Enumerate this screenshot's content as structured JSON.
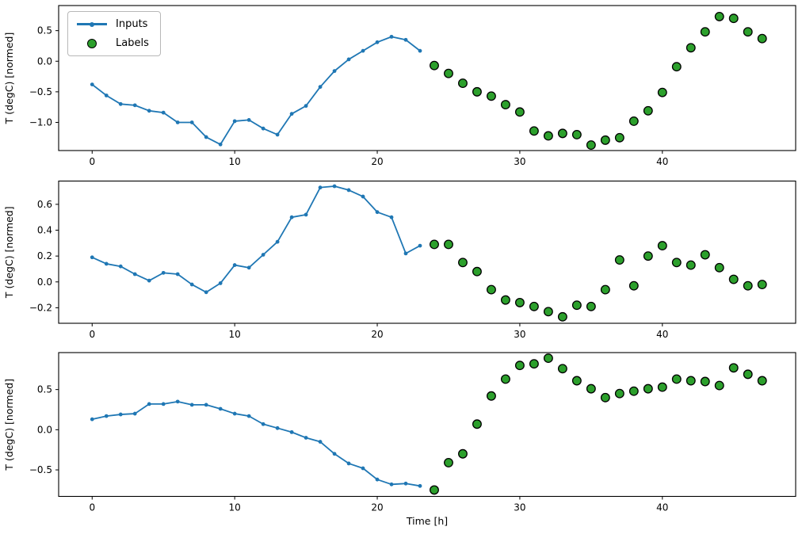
{
  "figure": {
    "background": "#ffffff",
    "xlabel": "Time [h]",
    "ylabel": "T (degC) [normed]",
    "colors": {
      "inputs_line": "#1f77b4",
      "labels_fill": "#2ca02c",
      "labels_edge": "#000000",
      "axis": "#000000",
      "tick_text": "#000000"
    },
    "legend": {
      "position": "upper-left-first-subplot",
      "items": [
        {
          "label": "Inputs",
          "marker": "blue-line-dot"
        },
        {
          "label": "Labels",
          "marker": "green-circle"
        }
      ]
    }
  },
  "chart_data": [
    {
      "type": "line+scatter",
      "subplot": 1,
      "title": "",
      "xlabel": "",
      "ylabel": "T (degC) [normed]",
      "grid": false,
      "xlim": [
        -2.35,
        49.35
      ],
      "ylim": [
        -1.46,
        0.91
      ],
      "xticks": {
        "values": [
          0,
          10,
          20,
          30,
          40
        ],
        "labels": [
          "0",
          "10",
          "20",
          "30",
          "40"
        ]
      },
      "yticks": {
        "values": [
          0.5,
          0.0,
          -0.5,
          -1.0
        ],
        "labels": [
          "0.5",
          "0.0",
          "−0.5",
          "−1.0"
        ]
      },
      "series": [
        {
          "name": "Inputs",
          "type": "line",
          "marker": "dot",
          "color": "#1f77b4",
          "x": [
            0,
            1,
            2,
            3,
            4,
            5,
            6,
            7,
            8,
            9,
            10,
            11,
            12,
            13,
            14,
            15,
            16,
            17,
            18,
            19,
            20,
            21,
            22,
            23
          ],
          "y": [
            -0.38,
            -0.56,
            -0.7,
            -0.72,
            -0.81,
            -0.84,
            -1.0,
            -1.0,
            -1.24,
            -1.36,
            -0.98,
            -0.96,
            -1.1,
            -1.2,
            -0.86,
            -0.73,
            -0.42,
            -0.16,
            0.03,
            0.17,
            0.31,
            0.4,
            0.35,
            0.17
          ]
        },
        {
          "name": "Labels",
          "type": "scatter",
          "marker": "circle",
          "color": "#2ca02c",
          "edge": "#000000",
          "x": [
            24,
            25,
            26,
            27,
            28,
            29,
            30,
            31,
            32,
            33,
            34,
            35,
            36,
            37,
            38,
            39,
            40,
            41,
            42,
            43,
            44,
            45,
            46,
            47
          ],
          "y": [
            -0.07,
            -0.2,
            -0.36,
            -0.5,
            -0.57,
            -0.71,
            -0.83,
            -1.14,
            -1.22,
            -1.18,
            -1.2,
            -1.37,
            -1.29,
            -1.25,
            -0.98,
            -0.81,
            -0.51,
            -0.09,
            0.22,
            0.48,
            0.73,
            0.7,
            0.48,
            0.37
          ]
        }
      ]
    },
    {
      "type": "line+scatter",
      "subplot": 2,
      "title": "",
      "xlabel": "",
      "ylabel": "T (degC) [normed]",
      "grid": false,
      "xlim": [
        -2.35,
        49.35
      ],
      "ylim": [
        -0.32,
        0.78
      ],
      "xticks": {
        "values": [
          0,
          10,
          20,
          30,
          40
        ],
        "labels": [
          "0",
          "10",
          "20",
          "30",
          "40"
        ]
      },
      "yticks": {
        "values": [
          0.6,
          0.4,
          0.2,
          0.0,
          -0.2
        ],
        "labels": [
          "0.6",
          "0.4",
          "0.2",
          "0.0",
          "−0.2"
        ]
      },
      "series": [
        {
          "name": "Inputs",
          "type": "line",
          "marker": "dot",
          "color": "#1f77b4",
          "x": [
            0,
            1,
            2,
            3,
            4,
            5,
            6,
            7,
            8,
            9,
            10,
            11,
            12,
            13,
            14,
            15,
            16,
            17,
            18,
            19,
            20,
            21,
            22,
            23
          ],
          "y": [
            0.19,
            0.14,
            0.12,
            0.06,
            0.01,
            0.07,
            0.06,
            -0.02,
            -0.08,
            -0.01,
            0.13,
            0.11,
            0.21,
            0.31,
            0.5,
            0.52,
            0.73,
            0.74,
            0.71,
            0.66,
            0.54,
            0.5,
            0.22,
            0.28
          ]
        },
        {
          "name": "Labels",
          "type": "scatter",
          "marker": "circle",
          "color": "#2ca02c",
          "edge": "#000000",
          "x": [
            24,
            25,
            26,
            27,
            28,
            29,
            30,
            31,
            32,
            33,
            34,
            35,
            36,
            37,
            38,
            39,
            40,
            41,
            42,
            43,
            44,
            45,
            46,
            47
          ],
          "y": [
            0.29,
            0.29,
            0.15,
            0.08,
            -0.06,
            -0.14,
            -0.16,
            -0.19,
            -0.23,
            -0.27,
            -0.18,
            -0.19,
            -0.06,
            0.17,
            -0.03,
            0.2,
            0.28,
            0.15,
            0.13,
            0.21,
            0.11,
            0.02,
            -0.03,
            -0.02
          ]
        }
      ]
    },
    {
      "type": "line+scatter",
      "subplot": 3,
      "title": "",
      "xlabel": "Time [h]",
      "ylabel": "T (degC) [normed]",
      "grid": false,
      "xlim": [
        -2.35,
        49.35
      ],
      "ylim": [
        -0.83,
        0.96
      ],
      "xticks": {
        "values": [
          0,
          10,
          20,
          30,
          40
        ],
        "labels": [
          "0",
          "10",
          "20",
          "30",
          "40"
        ]
      },
      "yticks": {
        "values": [
          0.5,
          0.0,
          -0.5
        ],
        "labels": [
          "0.5",
          "0.0",
          "−0.5"
        ]
      },
      "series": [
        {
          "name": "Inputs",
          "type": "line",
          "marker": "dot",
          "color": "#1f77b4",
          "x": [
            0,
            1,
            2,
            3,
            4,
            5,
            6,
            7,
            8,
            9,
            10,
            11,
            12,
            13,
            14,
            15,
            16,
            17,
            18,
            19,
            20,
            21,
            22,
            23
          ],
          "y": [
            0.13,
            0.17,
            0.19,
            0.2,
            0.32,
            0.32,
            0.35,
            0.31,
            0.31,
            0.26,
            0.2,
            0.17,
            0.07,
            0.02,
            -0.03,
            -0.1,
            -0.15,
            -0.3,
            -0.42,
            -0.48,
            -0.62,
            -0.68,
            -0.67,
            -0.7
          ]
        },
        {
          "name": "Labels",
          "type": "scatter",
          "marker": "circle",
          "color": "#2ca02c",
          "edge": "#000000",
          "x": [
            24,
            25,
            26,
            27,
            28,
            29,
            30,
            31,
            32,
            33,
            34,
            35,
            36,
            37,
            38,
            39,
            40,
            41,
            42,
            43,
            44,
            45,
            46,
            47
          ],
          "y": [
            -0.75,
            -0.41,
            -0.3,
            0.07,
            0.42,
            0.63,
            0.8,
            0.82,
            0.89,
            0.76,
            0.61,
            0.51,
            0.4,
            0.45,
            0.48,
            0.51,
            0.53,
            0.63,
            0.61,
            0.6,
            0.55,
            0.77,
            0.69,
            0.61
          ]
        }
      ]
    }
  ]
}
